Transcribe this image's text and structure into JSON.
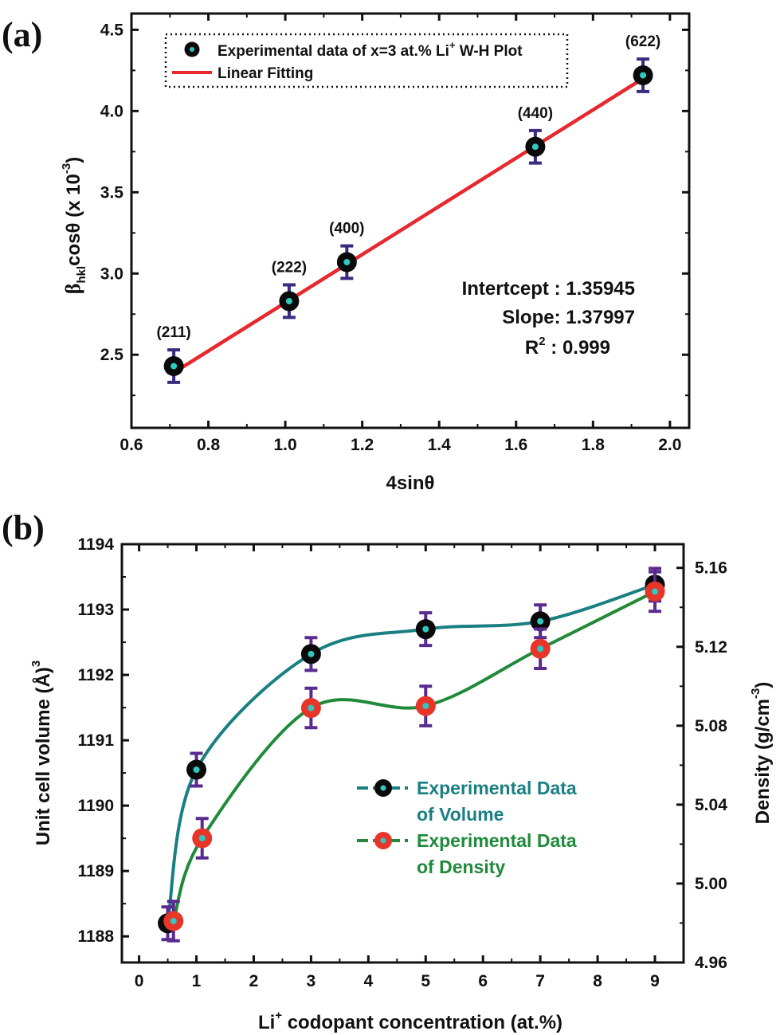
{
  "chart_data": [
    {
      "panel_label": "(a)",
      "type": "scatter",
      "xlabel": "4sinθ",
      "ylabel_main": "β",
      "ylabel_sub": "hkl",
      "ylabel_rest": "cosθ (x 10",
      "ylabel_sup": "-3",
      "ylabel_end": ")",
      "xlim": [
        0.6,
        2.05
      ],
      "ylim": [
        2.05,
        4.6
      ],
      "xticks": [
        0.6,
        0.8,
        1.0,
        1.2,
        1.4,
        1.6,
        1.8,
        2.0
      ],
      "yticks": [
        2.5,
        3.0,
        3.5,
        4.0,
        4.5
      ],
      "series": [
        {
          "name_main": "Experimental data of x=3 at.% Li",
          "name_sup": "+",
          "name_end": " W-H Plot",
          "x": [
            0.71,
            1.01,
            1.16,
            1.65,
            1.93
          ],
          "y": [
            2.43,
            2.83,
            3.07,
            3.78,
            4.22
          ],
          "yerr": [
            0.1,
            0.1,
            0.1,
            0.1,
            0.1
          ],
          "point_labels": [
            "(211)",
            "(222)",
            "(400)",
            "(440)",
            "(622)"
          ]
        },
        {
          "name": "Linear Fitting",
          "x": [
            0.71,
            1.93
          ],
          "y": [
            2.39,
            4.2
          ]
        }
      ],
      "annotations": {
        "intercept": "Intertcept : 1.35945",
        "slope": "Slope: 1.37997",
        "r2_main": "R",
        "r2_sup": "2",
        "r2_rest": " : 0.999"
      },
      "colors": {
        "fit": "#e8282c",
        "errbar": "#3a2a80",
        "marker": "#0a0a0a",
        "marker_center": "#2ec9c0"
      }
    },
    {
      "panel_label": "(b)",
      "type": "line",
      "xlabel_main": "Li",
      "xlabel_sup": "+",
      "xlabel_rest": " codopant concentration (at.%)",
      "ylabel_left_main": "Unit cell volume (Å)",
      "ylabel_left_sup": "3",
      "ylabel_right_main": "Density (g/cm",
      "ylabel_right_sup": "-3",
      "ylabel_right_end": ")",
      "xlim": [
        -0.3,
        9.5
      ],
      "ylim_left": [
        1187.6,
        1194
      ],
      "ylim_right": [
        4.96,
        5.172
      ],
      "xticks": [
        0,
        1,
        2,
        3,
        4,
        5,
        6,
        7,
        8,
        9
      ],
      "yticks_left": [
        1188,
        1189,
        1190,
        1191,
        1192,
        1193,
        1194
      ],
      "yticks_right": [
        4.96,
        5.0,
        5.04,
        5.08,
        5.12,
        5.16
      ],
      "yticks_right_labels": [
        "4.96",
        "5.00",
        "5.04",
        "5.08",
        "5.12",
        "5.16"
      ],
      "series": [
        {
          "name_line1": "Experimental Data",
          "name_line2": "of Volume",
          "axis": "left",
          "x": [
            0.5,
            1,
            3,
            5,
            7,
            9
          ],
          "y": [
            1188.2,
            1190.55,
            1192.32,
            1192.7,
            1192.82,
            1193.38
          ],
          "yerr": [
            0.25,
            0.25,
            0.25,
            0.25,
            0.25,
            0.25
          ],
          "color": "#1a7f82",
          "marker": "#0a0a0a"
        },
        {
          "name_line1": "Experimental Data",
          "name_line2": "of Density",
          "axis": "right",
          "x": [
            0.6,
            1.1,
            3.0,
            5.0,
            7.0,
            9.0
          ],
          "y": [
            4.981,
            5.023,
            5.089,
            5.09,
            5.119,
            5.148
          ],
          "yerr": [
            0.01,
            0.01,
            0.01,
            0.01,
            0.01,
            0.01
          ],
          "color": "#1f8a3a",
          "marker": "#e8352a"
        }
      ],
      "colors": {
        "errbar": "#5a2a90",
        "marker_center": "#2ec9c0"
      }
    }
  ]
}
